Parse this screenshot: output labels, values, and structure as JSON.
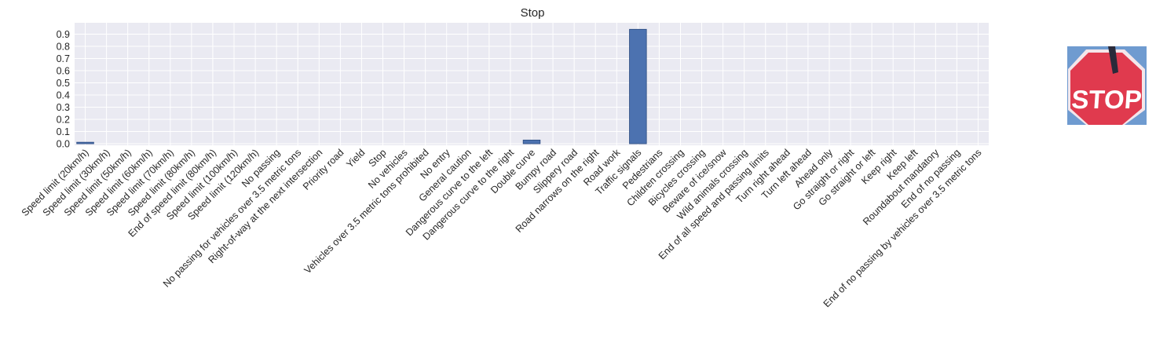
{
  "chart_data": {
    "type": "bar",
    "title": "Stop",
    "xlabel": "",
    "ylabel": "",
    "ylim": [
      0,
      1.0
    ],
    "yticks": [
      0.0,
      0.1,
      0.2,
      0.3,
      0.4,
      0.5,
      0.6,
      0.7,
      0.8,
      0.9
    ],
    "ytick_labels": [
      "0.0",
      "0.1",
      "0.2",
      "0.3",
      "0.4",
      "0.5",
      "0.6",
      "0.7",
      "0.8",
      "0.9"
    ],
    "grid": true,
    "categories": [
      "Speed limit (20km/h)",
      "Speed limit (30km/h)",
      "Speed limit (50km/h)",
      "Speed limit (60km/h)",
      "Speed limit (70km/h)",
      "Speed limit (80km/h)",
      "End of speed limit (80km/h)",
      "Speed limit (100km/h)",
      "Speed limit (120km/h)",
      "No passing",
      "No passing for vehicles over 3.5 metric tons",
      "Right-of-way at the next intersection",
      "Priority road",
      "Yield",
      "Stop",
      "No vehicles",
      "Vehicles over 3.5 metric tons prohibited",
      "No entry",
      "General caution",
      "Dangerous curve to the left",
      "Dangerous curve to the right",
      "Double curve",
      "Bumpy road",
      "Slippery road",
      "Road narrows on the right",
      "Road work",
      "Traffic signals",
      "Pedestrians",
      "Children crossing",
      "Bicycles crossing",
      "Beware of ice/snow",
      "Wild animals crossing",
      "End of all speed and passing limits",
      "Turn right ahead",
      "Turn left ahead",
      "Ahead only",
      "Go straight or right",
      "Go straight or left",
      "Keep right",
      "Keep left",
      "Roundabout mandatory",
      "End of no passing",
      "End of no passing by vehicles over 3.5 metric tons"
    ],
    "values": [
      0.012,
      0,
      0,
      0,
      0,
      0,
      0,
      0,
      0,
      0,
      0,
      0,
      0,
      0,
      0,
      0,
      0,
      0,
      0,
      0,
      0,
      0.03,
      0,
      0,
      0,
      0,
      0.94,
      0,
      0,
      0,
      0,
      0,
      0,
      0,
      0,
      0,
      0,
      0,
      0,
      0,
      0,
      0,
      0
    ],
    "colors": {
      "bar": "#4c72b0",
      "bar_edge": "#2a4a7f",
      "plot_background": "#eaeaf2",
      "grid": "#ffffff",
      "text": "#262626"
    }
  },
  "thumbnail": {
    "sign_text": "STOP",
    "colors": {
      "sky": "#6f9bd0",
      "sign": "#e03a4e",
      "border": "#f4e6ea",
      "post": "#2a2a3a"
    }
  }
}
